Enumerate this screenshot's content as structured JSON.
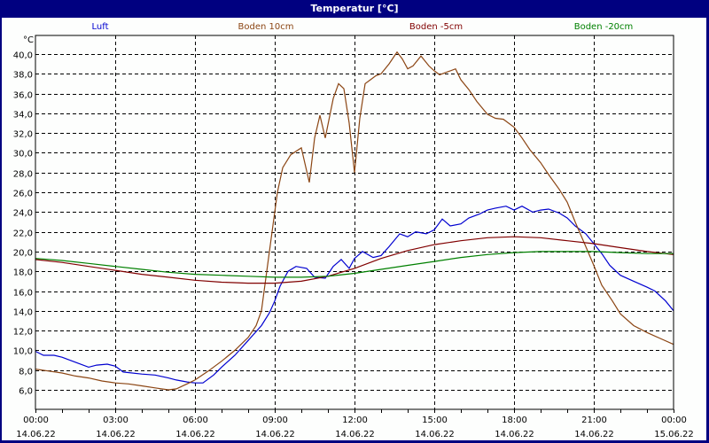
{
  "window": {
    "title": "Temperatur [°C]"
  },
  "chart_data": {
    "type": "line",
    "title": "Temperatur [°C]",
    "xlabel": "",
    "ylabel": "°C",
    "ylim": [
      4.3,
      42.0
    ],
    "yticks": [
      "6,0",
      "8,0",
      "10,0",
      "12,0",
      "14,0",
      "16,0",
      "18,0",
      "20,0",
      "22,0",
      "24,0",
      "26,0",
      "28,0",
      "30,0",
      "32,0",
      "34,0",
      "36,0",
      "38,0",
      "40,0"
    ],
    "ytick_values": [
      6,
      8,
      10,
      12,
      14,
      16,
      18,
      20,
      22,
      24,
      26,
      28,
      30,
      32,
      34,
      36,
      38,
      40
    ],
    "xticks": [
      {
        "time": "00:00",
        "date": "14.06.22",
        "hour": 0
      },
      {
        "time": "03:00",
        "date": "14.06.22",
        "hour": 3
      },
      {
        "time": "06:00",
        "date": "14.06.22",
        "hour": 6
      },
      {
        "time": "09:00",
        "date": "14.06.22",
        "hour": 9
      },
      {
        "time": "12:00",
        "date": "14.06.22",
        "hour": 12
      },
      {
        "time": "15:00",
        "date": "14.06.22",
        "hour": 15
      },
      {
        "time": "18:00",
        "date": "14.06.22",
        "hour": 18
      },
      {
        "time": "21:00",
        "date": "14.06.22",
        "hour": 21
      },
      {
        "time": "00:00",
        "date": "15.06.22",
        "hour": 24
      }
    ],
    "xlim_hours": [
      0,
      24
    ],
    "grid": true,
    "legend_position": "top",
    "series": [
      {
        "name": "Luft",
        "color": "#0000d0",
        "x": [
          0,
          0.3,
          0.7,
          1,
          1.5,
          2,
          2.3,
          2.7,
          3,
          3.3,
          4,
          4.5,
          5,
          5.3,
          5.7,
          6,
          6.3,
          6.7,
          7,
          7.5,
          8,
          8.5,
          8.8,
          9,
          9.2,
          9.5,
          9.8,
          10.2,
          10.5,
          10.9,
          11.2,
          11.5,
          11.8,
          12,
          12.3,
          12.7,
          13,
          13.3,
          13.7,
          14,
          14.3,
          14.7,
          15,
          15.3,
          15.6,
          16,
          16.3,
          16.7,
          17,
          17.3,
          17.7,
          18,
          18.3,
          18.7,
          19,
          19.3,
          19.7,
          20,
          20.3,
          20.7,
          21,
          21.3,
          21.6,
          22,
          22.5,
          23,
          23.3,
          23.7,
          24
        ],
        "values": [
          9.9,
          9.5,
          9.5,
          9.3,
          8.8,
          8.3,
          8.5,
          8.6,
          8.4,
          7.8,
          7.6,
          7.5,
          7.2,
          7.0,
          6.8,
          6.7,
          6.7,
          7.5,
          8.3,
          9.5,
          11.0,
          12.5,
          13.8,
          15.0,
          16.5,
          18.0,
          18.5,
          18.3,
          17.4,
          17.3,
          18.5,
          19.2,
          18.3,
          19.3,
          20.0,
          19.4,
          19.6,
          20.5,
          21.8,
          21.5,
          22.0,
          21.8,
          22.2,
          23.3,
          22.6,
          22.8,
          23.4,
          23.8,
          24.2,
          24.4,
          24.6,
          24.2,
          24.6,
          24.0,
          24.2,
          24.3,
          23.9,
          23.4,
          22.6,
          21.8,
          20.8,
          19.8,
          18.6,
          17.6,
          17.0,
          16.4,
          16.0,
          15.0,
          14.0
        ]
      },
      {
        "name": "Boden 10cm",
        "color": "#8b4513",
        "x": [
          0,
          0.5,
          1,
          1.5,
          2,
          2.5,
          3,
          3.5,
          4,
          4.5,
          5,
          5.3,
          5.7,
          6,
          6.5,
          7,
          7.5,
          8,
          8.3,
          8.5,
          8.7,
          8.9,
          9.1,
          9.3,
          9.6,
          10,
          10.3,
          10.5,
          10.7,
          10.9,
          11.2,
          11.4,
          11.6,
          11.8,
          12,
          12.2,
          12.4,
          12.6,
          12.8,
          13,
          13.3,
          13.6,
          13.8,
          14,
          14.2,
          14.5,
          14.8,
          15,
          15.2,
          15.5,
          15.8,
          16,
          16.3,
          16.6,
          17,
          17.3,
          17.6,
          18,
          18.3,
          18.6,
          19,
          19.3,
          19.7,
          20,
          20.3,
          20.7,
          21,
          21.3,
          21.7,
          22,
          22.5,
          23,
          23.5,
          24
        ],
        "values": [
          8.1,
          7.9,
          7.7,
          7.4,
          7.2,
          6.9,
          6.7,
          6.6,
          6.4,
          6.2,
          6.0,
          6.1,
          6.6,
          7.0,
          7.9,
          8.9,
          10.0,
          11.3,
          12.5,
          14.0,
          18.0,
          22.0,
          26.0,
          28.5,
          29.8,
          30.5,
          27.0,
          31.5,
          33.8,
          31.5,
          35.5,
          37.0,
          36.5,
          33.0,
          28.0,
          33.5,
          37.0,
          37.4,
          37.8,
          38.0,
          39.0,
          40.2,
          39.5,
          38.5,
          38.8,
          39.8,
          38.8,
          38.3,
          37.9,
          38.2,
          38.5,
          37.4,
          36.4,
          35.2,
          33.9,
          33.5,
          33.4,
          32.6,
          31.5,
          30.3,
          29.0,
          27.8,
          26.3,
          25.0,
          23.0,
          20.5,
          18.6,
          16.6,
          15.0,
          13.7,
          12.5,
          11.8,
          11.2,
          10.6
        ]
      },
      {
        "name": "Boden -5cm",
        "color": "#800000",
        "x": [
          0,
          1,
          2,
          3,
          4,
          5,
          6,
          7,
          8,
          9,
          10,
          11,
          12,
          13,
          14,
          15,
          16,
          17,
          18,
          19,
          20,
          21,
          22,
          23,
          24
        ],
        "values": [
          19.2,
          18.9,
          18.5,
          18.1,
          17.7,
          17.4,
          17.1,
          16.9,
          16.8,
          16.8,
          17.0,
          17.5,
          18.3,
          19.3,
          20.1,
          20.7,
          21.1,
          21.4,
          21.5,
          21.4,
          21.1,
          20.8,
          20.4,
          20.0,
          19.7
        ]
      },
      {
        "name": "Boden -20cm",
        "color": "#008000",
        "x": [
          0,
          1,
          2,
          3,
          4,
          5,
          6,
          7,
          8,
          9,
          10,
          11,
          12,
          13,
          14,
          15,
          16,
          17,
          18,
          19,
          20,
          21,
          22,
          23,
          24
        ],
        "values": [
          19.3,
          19.1,
          18.8,
          18.5,
          18.2,
          17.9,
          17.7,
          17.6,
          17.5,
          17.4,
          17.4,
          17.5,
          17.8,
          18.2,
          18.6,
          19.0,
          19.4,
          19.7,
          19.9,
          20.0,
          20.0,
          20.0,
          19.9,
          19.8,
          19.8
        ]
      }
    ]
  }
}
